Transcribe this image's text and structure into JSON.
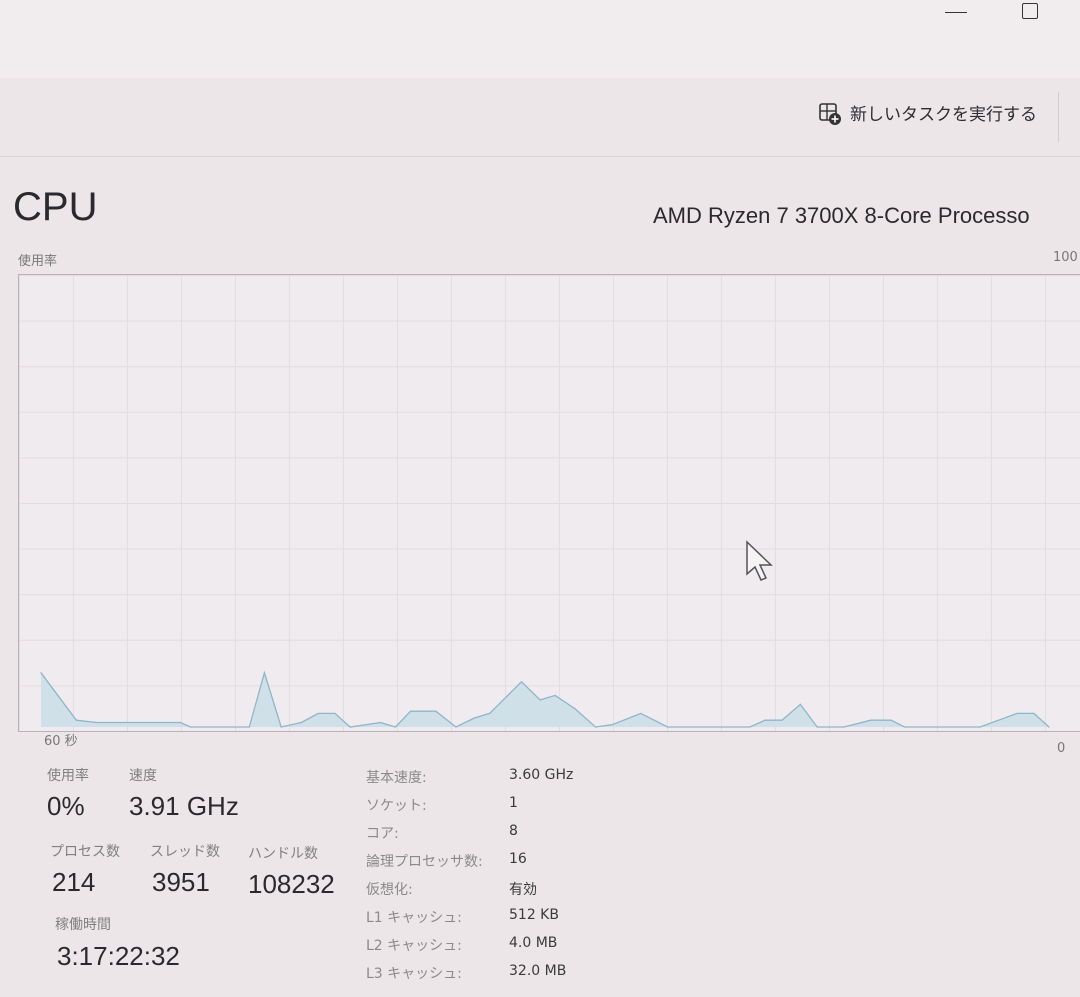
{
  "window": {
    "minimize_icon": "minimize-icon",
    "maximize_icon": "maximize-icon"
  },
  "toolbar": {
    "run_new_task_label": "新しいタスクを実行する",
    "run_icon": "run-task-icon"
  },
  "header": {
    "title": "CPU",
    "processor_name": "AMD Ryzen 7 3700X 8-Core Processo"
  },
  "chart_data": {
    "type": "area",
    "ylabel": "使用率",
    "ymax_label": "100",
    "xstart_label": "60 秒",
    "xend_label": "0",
    "xlim": [
      60,
      0
    ],
    "ylim": [
      0,
      100
    ],
    "grid": true,
    "color": "#8fb6c9",
    "fill": "#cfe0e8",
    "points": [
      [
        60,
        12
      ],
      [
        57.9,
        1.5
      ],
      [
        56.7,
        1
      ],
      [
        51.7,
        1
      ],
      [
        51.1,
        0
      ],
      [
        47.6,
        0
      ],
      [
        46.7,
        12
      ],
      [
        45.7,
        0
      ],
      [
        44.5,
        1
      ],
      [
        43.5,
        3
      ],
      [
        42.5,
        3
      ],
      [
        41.6,
        0
      ],
      [
        39.8,
        1
      ],
      [
        38.9,
        0
      ],
      [
        38,
        3.5
      ],
      [
        36.5,
        3.5
      ],
      [
        35.3,
        0
      ],
      [
        34.2,
        2
      ],
      [
        33.3,
        3
      ],
      [
        31.4,
        10
      ],
      [
        30.3,
        6
      ],
      [
        29.4,
        7
      ],
      [
        28.2,
        4
      ],
      [
        27,
        0
      ],
      [
        26,
        0.5
      ],
      [
        24.3,
        3
      ],
      [
        22.7,
        0
      ],
      [
        17.8,
        0
      ],
      [
        16.9,
        1.5
      ],
      [
        15.9,
        1.5
      ],
      [
        14.8,
        5
      ],
      [
        13.8,
        0
      ],
      [
        12.2,
        0
      ],
      [
        10.6,
        1.5
      ],
      [
        9.4,
        1.5
      ],
      [
        8.6,
        0
      ],
      [
        4.1,
        0
      ],
      [
        1.9,
        3
      ],
      [
        0.9,
        3
      ],
      [
        0,
        0
      ]
    ]
  },
  "stats": {
    "usage_label": "使用率",
    "usage_value": "0%",
    "speed_label": "速度",
    "speed_value": "3.91 GHz",
    "processes_label": "プロセス数",
    "processes_value": "214",
    "threads_label": "スレッド数",
    "threads_value": "3951",
    "handles_label": "ハンドル数",
    "handles_value": "108232",
    "uptime_label": "稼働時間",
    "uptime_value": "3:17:22:32"
  },
  "specs": [
    {
      "key": "基本速度:",
      "value": "3.60 GHz"
    },
    {
      "key": "ソケット:",
      "value": "1"
    },
    {
      "key": "コア:",
      "value": "8"
    },
    {
      "key": "論理プロセッサ数:",
      "value": "16"
    },
    {
      "key": "仮想化:",
      "value": "有効"
    },
    {
      "key": "L1 キャッシュ:",
      "value": "512 KB"
    },
    {
      "key": "L2 キャッシュ:",
      "value": "4.0 MB"
    },
    {
      "key": "L3 キャッシュ:",
      "value": "32.0 MB"
    }
  ]
}
